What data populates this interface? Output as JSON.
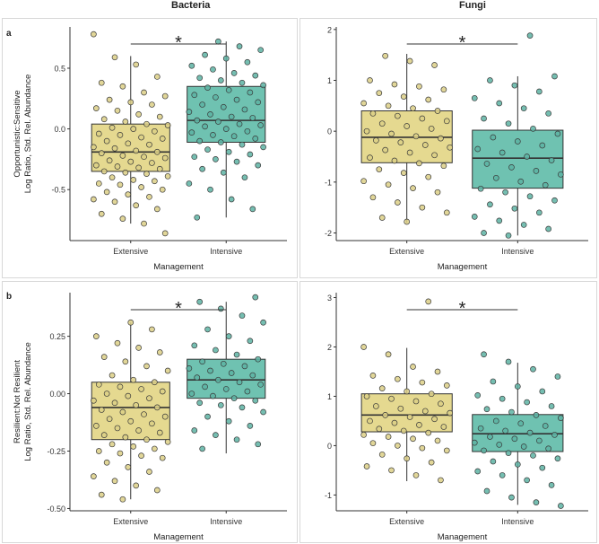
{
  "column_titles": [
    "Bacteria",
    "Fungi"
  ],
  "row_labels": [
    "a",
    "b"
  ],
  "colors": {
    "extensive": "#e5d990",
    "extensive_point": "#dccf86",
    "intensive": "#6fc2b1",
    "intensive_point": "#5db3a3",
    "line": "#333333",
    "point_stroke": "#3a3a3a"
  },
  "chart_data": [
    {
      "id": "a-bacteria",
      "type": "box",
      "title": "",
      "categories": [
        "Extensive",
        "Intensive"
      ],
      "xlabel": "Management",
      "ylabel_lines": [
        "Opportunistic:Sensitive",
        "Log Ratio, Std. Rel. Abundance"
      ],
      "ylim": [
        -0.92,
        0.84
      ],
      "yticks": [
        -0.5,
        0.0,
        0.5
      ],
      "ytick_labels": [
        "-0.5",
        "0.0",
        "0.5"
      ],
      "boxes": [
        {
          "group": "Extensive",
          "q1": -0.35,
          "median": -0.19,
          "q3": 0.04,
          "whisker_low": -0.78,
          "whisker_high": 0.6
        },
        {
          "group": "Intensive",
          "q1": -0.11,
          "median": 0.07,
          "q3": 0.35,
          "whisker_low": -0.73,
          "whisker_high": 0.72
        }
      ],
      "significance": "*",
      "points": {
        "Extensive": [
          0.78,
          0.59,
          0.53,
          0.43,
          0.38,
          0.35,
          0.3,
          0.27,
          0.24,
          0.22,
          0.2,
          0.17,
          0.15,
          0.12,
          0.1,
          0.08,
          0.06,
          0.04,
          0.03,
          0.01,
          0.0,
          -0.02,
          -0.04,
          -0.05,
          -0.07,
          -0.08,
          -0.1,
          -0.12,
          -0.13,
          -0.15,
          -0.16,
          -0.18,
          -0.19,
          -0.2,
          -0.22,
          -0.23,
          -0.24,
          -0.26,
          -0.27,
          -0.28,
          -0.3,
          -0.31,
          -0.32,
          -0.33,
          -0.35,
          -0.36,
          -0.37,
          -0.39,
          -0.4,
          -0.42,
          -0.43,
          -0.45,
          -0.46,
          -0.48,
          -0.5,
          -0.52,
          -0.54,
          -0.56,
          -0.58,
          -0.6,
          -0.63,
          -0.66,
          -0.7,
          -0.74,
          -0.78,
          -0.86
        ],
        "Intensive": [
          0.72,
          0.68,
          0.65,
          0.61,
          0.58,
          0.55,
          0.52,
          0.49,
          0.46,
          0.44,
          0.42,
          0.4,
          0.38,
          0.36,
          0.34,
          0.32,
          0.3,
          0.28,
          0.26,
          0.24,
          0.22,
          0.2,
          0.18,
          0.16,
          0.14,
          0.12,
          0.1,
          0.09,
          0.07,
          0.06,
          0.04,
          0.03,
          0.02,
          0.0,
          -0.02,
          -0.03,
          -0.05,
          -0.06,
          -0.08,
          -0.1,
          -0.11,
          -0.13,
          -0.15,
          -0.17,
          -0.19,
          -0.21,
          -0.23,
          -0.25,
          -0.27,
          -0.3,
          -0.33,
          -0.36,
          -0.4,
          -0.45,
          -0.5,
          -0.58,
          -0.66,
          -0.73
        ]
      }
    },
    {
      "id": "a-fungi",
      "type": "box",
      "title": "",
      "categories": [
        "Extensive",
        "Intensive"
      ],
      "xlabel": "Management",
      "ylabel_lines": [],
      "ylim": [
        -2.15,
        2.05
      ],
      "yticks": [
        -2,
        -1,
        0,
        1,
        2
      ],
      "ytick_labels": [
        "-2",
        "-1",
        "0",
        "1",
        "2"
      ],
      "boxes": [
        {
          "group": "Extensive",
          "q1": -0.62,
          "median": -0.12,
          "q3": 0.4,
          "whisker_low": -1.8,
          "whisker_high": 1.52
        },
        {
          "group": "Intensive",
          "q1": -1.12,
          "median": -0.53,
          "q3": 0.02,
          "whisker_low": -2.05,
          "whisker_high": 1.08
        }
      ],
      "significance": "*",
      "points": {
        "Extensive": [
          1.48,
          1.38,
          1.3,
          1.0,
          0.92,
          0.88,
          0.82,
          0.75,
          0.68,
          0.62,
          0.55,
          0.5,
          0.45,
          0.4,
          0.35,
          0.3,
          0.25,
          0.2,
          0.15,
          0.1,
          0.05,
          0.0,
          -0.05,
          -0.1,
          -0.14,
          -0.18,
          -0.22,
          -0.27,
          -0.32,
          -0.37,
          -0.42,
          -0.47,
          -0.52,
          -0.58,
          -0.63,
          -0.68,
          -0.75,
          -0.82,
          -0.9,
          -0.98,
          -1.05,
          -1.12,
          -1.2,
          -1.3,
          -1.4,
          -1.5,
          -1.6,
          -1.7,
          -1.78
        ],
        "Intensive": [
          1.88,
          1.08,
          1.0,
          0.9,
          0.78,
          0.65,
          0.55,
          0.45,
          0.35,
          0.25,
          0.15,
          0.05,
          -0.05,
          -0.12,
          -0.2,
          -0.28,
          -0.35,
          -0.42,
          -0.5,
          -0.57,
          -0.64,
          -0.71,
          -0.78,
          -0.85,
          -0.92,
          -0.99,
          -1.06,
          -1.13,
          -1.2,
          -1.28,
          -1.36,
          -1.44,
          -1.52,
          -1.6,
          -1.68,
          -1.76,
          -1.84,
          -1.92,
          -2.0,
          -2.05
        ]
      }
    },
    {
      "id": "b-bacteria",
      "type": "box",
      "title": "",
      "categories": [
        "Extensive",
        "Intensive"
      ],
      "xlabel": "Management",
      "ylabel_lines": [
        "Resilient:Not Resilient",
        "Log Ratio, Std. Rel. Abundance"
      ],
      "ylim": [
        -0.51,
        0.44
      ],
      "yticks": [
        -0.5,
        -0.25,
        0.0,
        0.25
      ],
      "ytick_labels": [
        "-0.50",
        "-0.25",
        "0.00",
        "0.25"
      ],
      "boxes": [
        {
          "group": "Extensive",
          "q1": -0.2,
          "median": -0.06,
          "q3": 0.05,
          "whisker_low": -0.46,
          "whisker_high": 0.31
        },
        {
          "group": "Intensive",
          "q1": -0.02,
          "median": 0.06,
          "q3": 0.15,
          "whisker_low": -0.26,
          "whisker_high": 0.4
        }
      ],
      "significance": "*",
      "points": {
        "Extensive": [
          0.31,
          0.28,
          0.25,
          0.22,
          0.2,
          0.18,
          0.16,
          0.14,
          0.12,
          0.1,
          0.08,
          0.06,
          0.05,
          0.04,
          0.03,
          0.02,
          0.01,
          0.0,
          -0.01,
          -0.02,
          -0.03,
          -0.04,
          -0.05,
          -0.06,
          -0.07,
          -0.08,
          -0.09,
          -0.1,
          -0.11,
          -0.12,
          -0.13,
          -0.14,
          -0.15,
          -0.16,
          -0.17,
          -0.18,
          -0.19,
          -0.2,
          -0.21,
          -0.22,
          -0.23,
          -0.24,
          -0.25,
          -0.26,
          -0.27,
          -0.28,
          -0.3,
          -0.32,
          -0.34,
          -0.36,
          -0.38,
          -0.4,
          -0.42,
          -0.44,
          -0.46
        ],
        "Intensive": [
          0.42,
          0.4,
          0.37,
          0.34,
          0.31,
          0.28,
          0.25,
          0.23,
          0.21,
          0.19,
          0.17,
          0.15,
          0.14,
          0.13,
          0.12,
          0.11,
          0.1,
          0.09,
          0.08,
          0.07,
          0.06,
          0.05,
          0.04,
          0.03,
          0.02,
          0.01,
          0.0,
          -0.01,
          -0.02,
          -0.03,
          -0.04,
          -0.05,
          -0.06,
          -0.08,
          -0.1,
          -0.12,
          -0.14,
          -0.16,
          -0.18,
          -0.2,
          -0.22,
          -0.24
        ]
      }
    },
    {
      "id": "b-fungi",
      "type": "box",
      "title": "",
      "categories": [
        "Extensive",
        "Intensive"
      ],
      "xlabel": "Management",
      "ylabel_lines": [],
      "ylim": [
        -1.32,
        3.1
      ],
      "yticks": [
        -1,
        0,
        1,
        2,
        3
      ],
      "ytick_labels": [
        "-1",
        "0",
        "1",
        "2",
        "3"
      ],
      "boxes": [
        {
          "group": "Extensive",
          "q1": 0.28,
          "median": 0.62,
          "q3": 1.05,
          "whisker_low": -0.72,
          "whisker_high": 1.98
        },
        {
          "group": "Intensive",
          "q1": -0.12,
          "median": 0.24,
          "q3": 0.63,
          "whisker_low": -1.2,
          "whisker_high": 1.68
        }
      ],
      "significance": "*",
      "points": {
        "Extensive": [
          2.92,
          2.0,
          1.85,
          1.6,
          1.5,
          1.42,
          1.35,
          1.28,
          1.22,
          1.16,
          1.1,
          1.05,
          1.0,
          0.95,
          0.9,
          0.85,
          0.8,
          0.75,
          0.7,
          0.66,
          0.62,
          0.58,
          0.54,
          0.5,
          0.46,
          0.42,
          0.38,
          0.34,
          0.3,
          0.26,
          0.22,
          0.18,
          0.14,
          0.1,
          0.05,
          0.0,
          -0.05,
          -0.1,
          -0.18,
          -0.26,
          -0.34,
          -0.42,
          -0.5,
          -0.6,
          -0.7
        ],
        "Intensive": [
          1.85,
          1.7,
          1.55,
          1.4,
          1.3,
          1.2,
          1.1,
          1.02,
          0.95,
          0.88,
          0.8,
          0.74,
          0.68,
          0.62,
          0.56,
          0.5,
          0.45,
          0.4,
          0.35,
          0.3,
          0.26,
          0.22,
          0.18,
          0.14,
          0.1,
          0.06,
          0.02,
          -0.02,
          -0.06,
          -0.1,
          -0.15,
          -0.2,
          -0.26,
          -0.32,
          -0.38,
          -0.45,
          -0.52,
          -0.6,
          -0.7,
          -0.8,
          -0.92,
          -1.05,
          -1.15,
          -1.22
        ]
      }
    }
  ]
}
